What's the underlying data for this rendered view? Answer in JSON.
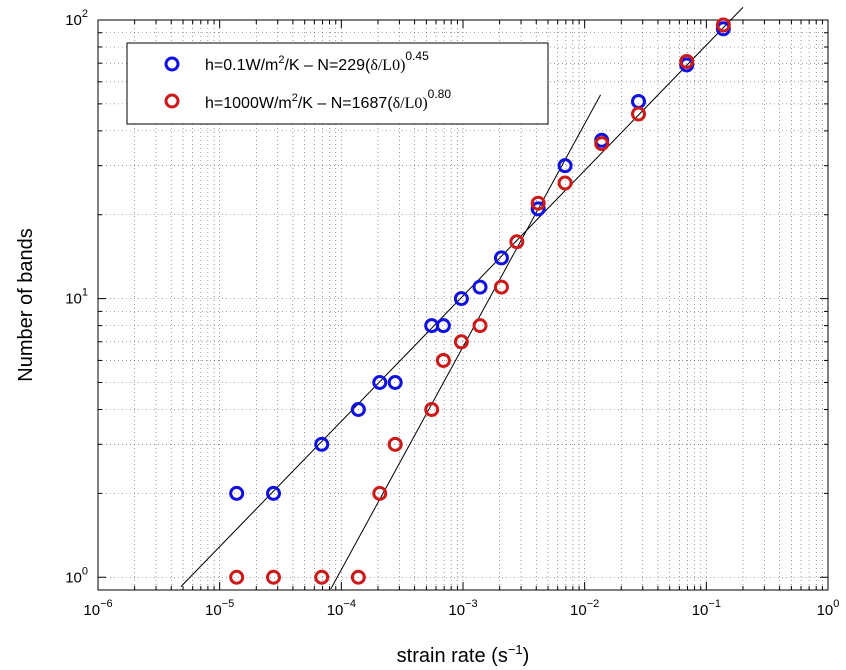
{
  "chart_data": {
    "type": "scatter",
    "x_scale": "log",
    "y_scale": "log",
    "xlim": [
      1e-06,
      1
    ],
    "ylim": [
      0.9,
      100
    ],
    "grid": true,
    "legend_placement": "top-left",
    "xlabel": "strain rate (s⁻¹)",
    "ylabel": "Number of bands",
    "x_ticks": [
      {
        "value": 1e-06,
        "base": "10",
        "exp": "−6"
      },
      {
        "value": 1e-05,
        "base": "10",
        "exp": "−5"
      },
      {
        "value": 0.0001,
        "base": "10",
        "exp": "−4"
      },
      {
        "value": 0.001,
        "base": "10",
        "exp": "−3"
      },
      {
        "value": 0.01,
        "base": "10",
        "exp": "−2"
      },
      {
        "value": 0.1,
        "base": "10",
        "exp": "−1"
      },
      {
        "value": 1,
        "base": "10",
        "exp": "0"
      }
    ],
    "y_ticks": [
      {
        "value": 1,
        "base": "10",
        "exp": "0"
      },
      {
        "value": 10,
        "base": "10",
        "exp": "1"
      },
      {
        "value": 100,
        "base": "10",
        "exp": "2"
      }
    ],
    "series": [
      {
        "name": "h=0.1W/m²/K – N=229(δ̇/L0)^0.45",
        "color": "#1010e0",
        "marker": "circle-open",
        "points": [
          [
            1.38e-05,
            2
          ],
          [
            2.77e-05,
            2
          ],
          [
            6.9e-05,
            3
          ],
          [
            0.000138,
            4
          ],
          [
            0.000207,
            5
          ],
          [
            0.000277,
            5
          ],
          [
            0.000553,
            8
          ],
          [
            0.00069,
            8
          ],
          [
            0.00097,
            10
          ],
          [
            0.00138,
            11
          ],
          [
            0.00207,
            14
          ],
          [
            0.00415,
            21
          ],
          [
            0.0069,
            30
          ],
          [
            0.0138,
            37
          ],
          [
            0.0277,
            51
          ],
          [
            0.069,
            69
          ],
          [
            0.138,
            93
          ]
        ],
        "fit": {
          "coef": 229,
          "exponent": 0.45,
          "x_range": [
            4.8e-06,
            0.2
          ]
        }
      },
      {
        "name": "h=1000W/m²/K – N=1687(δ̇/L0)^0.80",
        "color": "#cc1a1a",
        "marker": "circle-open",
        "points": [
          [
            1.38e-05,
            1
          ],
          [
            2.77e-05,
            1
          ],
          [
            6.9e-05,
            1
          ],
          [
            0.000138,
            1
          ],
          [
            0.000207,
            2
          ],
          [
            0.000277,
            3
          ],
          [
            0.000553,
            4
          ],
          [
            0.00069,
            6
          ],
          [
            0.00097,
            7
          ],
          [
            0.00138,
            8
          ],
          [
            0.00207,
            11
          ],
          [
            0.00277,
            16
          ],
          [
            0.00415,
            22
          ],
          [
            0.0069,
            26
          ],
          [
            0.0138,
            36
          ],
          [
            0.0277,
            46
          ],
          [
            0.069,
            71
          ],
          [
            0.138,
            96
          ]
        ],
        "fit": {
          "coef": 1687,
          "exponent": 0.8,
          "x_range": [
            8.2e-05,
            0.0135
          ]
        }
      }
    ],
    "legend": [
      {
        "prefix": "h=0.1W/m",
        "sup": "2",
        "mid": "/K – N=229(",
        "delta": "δ",
        "dot": "˙",
        "tail": "/L0)",
        "power": "0.45"
      },
      {
        "prefix": "h=1000W/m",
        "sup": "2",
        "mid": "/K – N=1687(",
        "delta": "δ",
        "dot": "˙",
        "tail": "/L0)",
        "power": "0.80"
      }
    ],
    "axis_label_parts": {
      "x_main": "strain rate (s",
      "x_sup": "−1",
      "x_close": ")"
    }
  }
}
